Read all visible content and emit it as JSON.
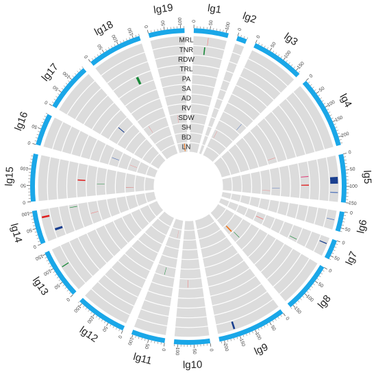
{
  "chart_data": {
    "type": "circos",
    "chromosomes": [
      {
        "name": "lg1",
        "length": 108,
        "ticks": [
          0,
          50,
          100
        ]
      },
      {
        "name": "lg2",
        "length": 30,
        "ticks": [
          0
        ]
      },
      {
        "name": "lg3",
        "length": 165,
        "ticks": [
          0,
          50,
          100,
          150
        ]
      },
      {
        "name": "lg4",
        "length": 225,
        "ticks": [
          0,
          50,
          100,
          150,
          200
        ]
      },
      {
        "name": "lg5",
        "length": 150,
        "ticks": [
          0,
          50,
          100,
          150
        ]
      },
      {
        "name": "lg6",
        "length": 62,
        "ticks": [
          0,
          50
        ]
      },
      {
        "name": "lg7",
        "length": 62,
        "ticks": [
          0,
          50
        ]
      },
      {
        "name": "lg8",
        "length": 160,
        "ticks": [
          0,
          50,
          100,
          150
        ]
      },
      {
        "name": "lg9",
        "length": 215,
        "ticks": [
          0,
          50,
          100,
          150,
          200
        ]
      },
      {
        "name": "lg10",
        "length": 112,
        "ticks": [
          0,
          50,
          100
        ]
      },
      {
        "name": "lg11",
        "length": 105,
        "ticks": [
          0,
          50,
          100
        ]
      },
      {
        "name": "lg12",
        "length": 160,
        "ticks": [
          0,
          50,
          100,
          150
        ]
      },
      {
        "name": "lg13",
        "length": 155,
        "ticks": [
          0,
          50,
          100,
          150
        ]
      },
      {
        "name": "lg14",
        "length": 105,
        "ticks": [
          0,
          50,
          100
        ]
      },
      {
        "name": "lg15",
        "length": 148,
        "ticks": [
          0,
          50,
          100
        ]
      },
      {
        "name": "lg16",
        "length": 100,
        "ticks": [
          0,
          50
        ]
      },
      {
        "name": "lg17",
        "length": 150,
        "ticks": [
          0,
          50,
          100
        ]
      },
      {
        "name": "lg18",
        "length": 170,
        "ticks": [
          0,
          50,
          100,
          150
        ]
      },
      {
        "name": "lg19",
        "length": 112,
        "ticks": [
          0,
          50,
          100
        ]
      }
    ],
    "tracks": [
      "MRL",
      "TNR",
      "RDW",
      "TRL",
      "PA",
      "SA",
      "AD",
      "RV",
      "SDW",
      "SH",
      "BD",
      "LN"
    ],
    "colors": {
      "ideogram": "#1aa7e8",
      "track_bg": "#dcdcdc",
      "red": "#e02020",
      "pink": "#f08080",
      "green": "#1a8a3a",
      "navy": "#1a3f8f",
      "steel": "#5577bb",
      "orange": "#f07820",
      "magenta": "#e0407a"
    },
    "markers": [
      {
        "chr": "lg1",
        "pos": 48,
        "track": 0,
        "color": "pink"
      },
      {
        "chr": "lg1",
        "pos": 40,
        "track": 1,
        "color": "green",
        "width": 4
      },
      {
        "chr": "lg18",
        "pos": 110,
        "track": 3,
        "color": "green",
        "width": 10
      },
      {
        "chr": "lg17",
        "pos": 80,
        "track": 6,
        "color": "navy",
        "width": 4
      },
      {
        "chr": "lg16",
        "pos": 45,
        "track": 7,
        "color": "steel",
        "width": 3
      },
      {
        "chr": "lg3",
        "pos": 130,
        "track": 7,
        "color": "steel",
        "width": 2
      },
      {
        "chr": "lg3",
        "pos": 20,
        "track": 9,
        "color": "pink",
        "width": 2
      },
      {
        "chr": "lg5",
        "pos": 80,
        "track": 0,
        "color": "navy",
        "width": 22
      },
      {
        "chr": "lg5",
        "pos": 120,
        "track": 0,
        "color": "steel",
        "width": 3
      },
      {
        "chr": "lg5",
        "pos": 60,
        "track": 3,
        "color": "magenta",
        "width": 3
      },
      {
        "chr": "lg5",
        "pos": 95,
        "track": 3,
        "color": "red",
        "width": 4
      },
      {
        "chr": "lg4",
        "pos": 200,
        "track": 6,
        "color": "pink",
        "width": 2
      },
      {
        "chr": "lg5",
        "pos": 110,
        "track": 6,
        "color": "steel",
        "width": 2
      },
      {
        "chr": "lg5",
        "pos": 125,
        "track": 7,
        "color": "pink",
        "width": 2
      },
      {
        "chr": "lg6",
        "pos": 30,
        "track": 0,
        "color": "steel",
        "width": 2
      },
      {
        "chr": "lg7",
        "pos": 20,
        "track": 0,
        "color": "navy",
        "width": 3
      },
      {
        "chr": "lg7",
        "pos": 50,
        "track": 3,
        "color": "green",
        "width": 2
      },
      {
        "chr": "lg7",
        "pos": 30,
        "track": 7,
        "color": "pink",
        "width": 4
      },
      {
        "chr": "lg8",
        "pos": 120,
        "track": 8,
        "color": "green",
        "width": 3
      },
      {
        "chr": "lg8",
        "pos": 130,
        "track": 9,
        "color": "orange",
        "width": 10
      },
      {
        "chr": "lg9",
        "pos": 160,
        "track": 0,
        "color": "navy",
        "width": 6
      },
      {
        "chr": "lg10",
        "pos": 70,
        "track": 5,
        "color": "pink",
        "width": 2
      },
      {
        "chr": "lg11",
        "pos": 55,
        "track": 6,
        "color": "green",
        "width": 2
      },
      {
        "chr": "lg11",
        "pos": 30,
        "track": 10,
        "color": "pink",
        "width": 2
      },
      {
        "chr": "lg13",
        "pos": 90,
        "track": 0,
        "color": "green",
        "width": 3
      },
      {
        "chr": "lg14",
        "pos": 80,
        "track": 0,
        "color": "red",
        "width": 6
      },
      {
        "chr": "lg14",
        "pos": 30,
        "track": 1,
        "color": "navy",
        "width": 8
      },
      {
        "chr": "lg14",
        "pos": 95,
        "track": 3,
        "color": "green",
        "width": 2
      },
      {
        "chr": "lg14",
        "pos": 50,
        "track": 5,
        "color": "pink",
        "width": 2
      },
      {
        "chr": "lg15",
        "pos": 75,
        "track": 4,
        "color": "red",
        "width": 5
      },
      {
        "chr": "lg15",
        "pos": 60,
        "track": 6,
        "color": "green",
        "width": 2
      },
      {
        "chr": "lg15",
        "pos": 40,
        "track": 9,
        "color": "red",
        "width": 2
      },
      {
        "chr": "lg16",
        "pos": 40,
        "track": 9,
        "color": "pink",
        "width": 2
      },
      {
        "chr": "lg18",
        "pos": 40,
        "track": 8,
        "color": "pink",
        "width": 2
      },
      {
        "chr": "lg19",
        "pos": 80,
        "track": 11,
        "color": "orange",
        "width": 10
      },
      {
        "chr": "lg19",
        "pos": 50,
        "track": 8,
        "color": "pink",
        "width": 2
      }
    ]
  }
}
